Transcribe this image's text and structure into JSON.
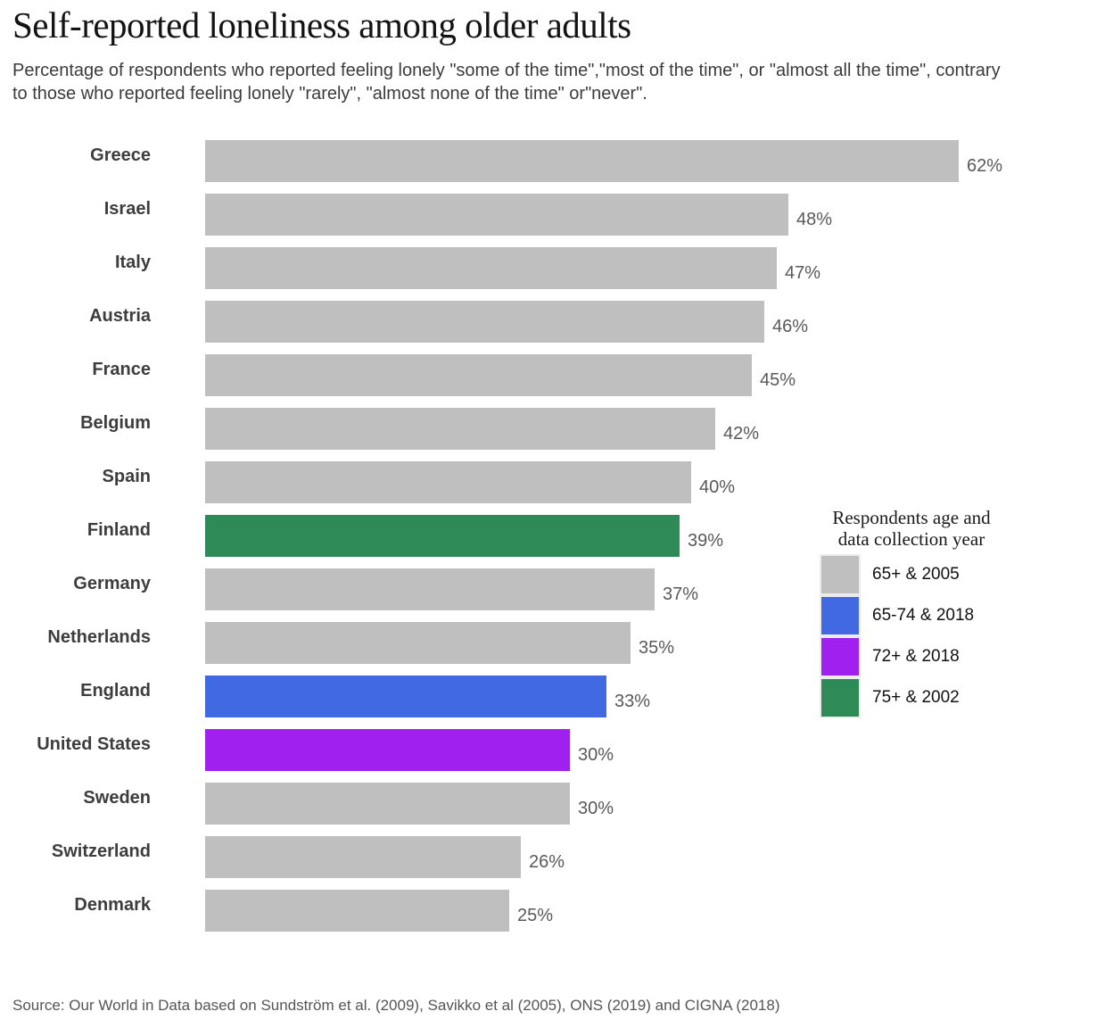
{
  "chart_data": {
    "type": "bar",
    "orientation": "horizontal",
    "title": "Self-reported loneliness among older adults",
    "subtitle": "Percentage of respondents who reported feeling lonely \"some of the time\",\"most of the time\", or \"almost all the time\", contrary to those who reported feeling lonely \"rarely\", \"almost none of the time\" or\"never\".",
    "categories": [
      "Greece",
      "Israel",
      "Italy",
      "Austria",
      "France",
      "Belgium",
      "Spain",
      "Finland",
      "Germany",
      "Netherlands",
      "England",
      "United States",
      "Sweden",
      "Switzerland",
      "Denmark"
    ],
    "values": [
      62,
      48,
      47,
      46,
      45,
      42,
      40,
      39,
      37,
      35,
      33,
      30,
      30,
      26,
      25
    ],
    "value_labels": [
      "62%",
      "48%",
      "47%",
      "46%",
      "45%",
      "42%",
      "40%",
      "39%",
      "37%",
      "35%",
      "33%",
      "30%",
      "30%",
      "26%",
      "25%"
    ],
    "groups": [
      "65+ & 2005",
      "65+ & 2005",
      "65+ & 2005",
      "65+ & 2005",
      "65+ & 2005",
      "65+ & 2005",
      "65+ & 2005",
      "75+ & 2002",
      "65+ & 2005",
      "65+ & 2005",
      "65-74 & 2018",
      "72+ & 2018",
      "65+ & 2005",
      "65+ & 2005",
      "65+ & 2005"
    ],
    "grid": false,
    "legend_position": "right",
    "legend": {
      "title_line1": "Respondents age and",
      "title_line2": "data collection year",
      "entries": [
        {
          "label": "65+ & 2005",
          "color": "#bfbfbf"
        },
        {
          "label": "65-74 & 2018",
          "color": "#4169e1"
        },
        {
          "label": "72+ & 2018",
          "color": "#a020f0"
        },
        {
          "label": "75+ & 2002",
          "color": "#2e8b57"
        }
      ]
    },
    "source": "Source: Our World in Data based on Sundström et al. (2009), Savikko et al (2005), ONS (2019) and CIGNA (2018)"
  }
}
